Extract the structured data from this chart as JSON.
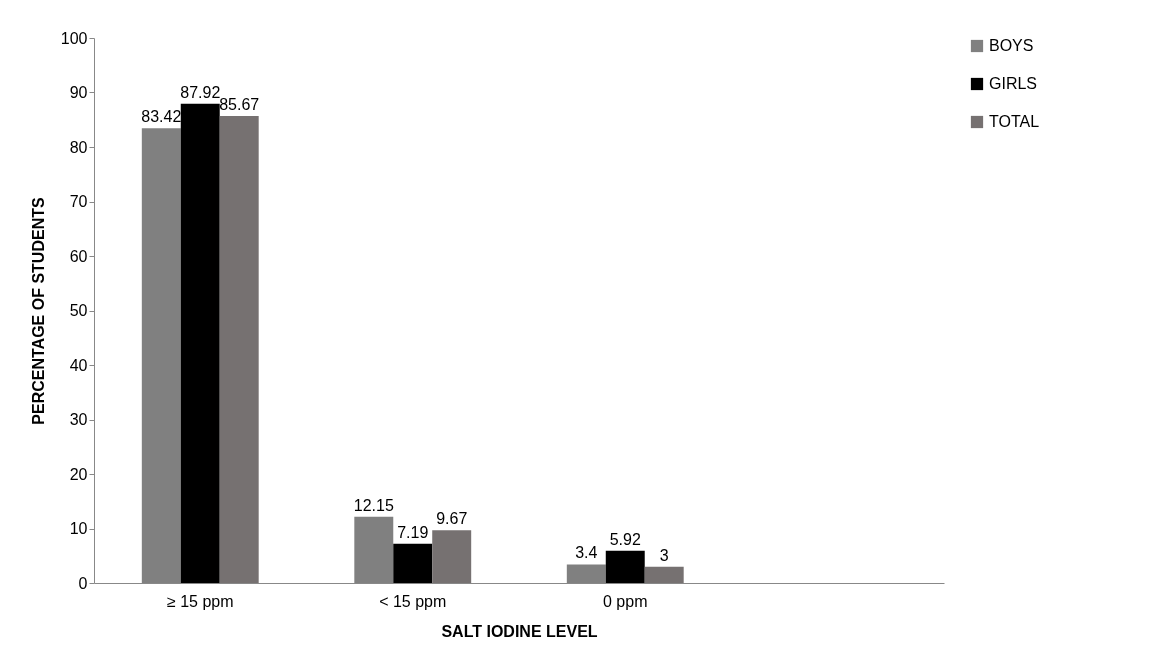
{
  "chart_data": {
    "type": "bar",
    "xlabel": "SALT IODINE  LEVEL",
    "ylabel": "PERCENTAGE OF STUDENTS",
    "categories": [
      "≥ 15 ppm",
      "< 15 ppm",
      "0 ppm",
      null
    ],
    "series": [
      {
        "name": "BOYS",
        "color": "#808080",
        "values": [
          83.42,
          12.15,
          3.4,
          null
        ]
      },
      {
        "name": "GIRLS",
        "color": "#000000",
        "values": [
          87.92,
          7.19,
          5.92,
          null
        ]
      },
      {
        "name": "TOTAL",
        "color": "#767171",
        "values": [
          85.67,
          9.67,
          3,
          null
        ]
      }
    ],
    "ylim": [
      0,
      100
    ],
    "yticks": [
      0,
      10,
      20,
      30,
      40,
      50,
      60,
      70,
      80,
      90,
      100
    ],
    "grid": false,
    "legend": "right",
    "data_labels": true
  }
}
